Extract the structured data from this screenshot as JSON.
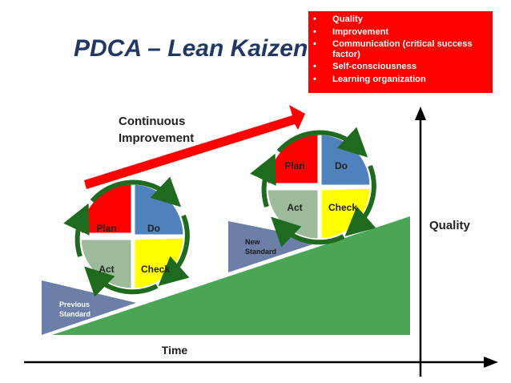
{
  "title": "PDCA – Lean Kaizen",
  "factors": [
    "Quality",
    "Improvement",
    "Communication (critical success factor)",
    "Self-consciousness",
    "Learning organization"
  ],
  "bullet": "•",
  "arrow_label": [
    "Continuous",
    "Improvement"
  ],
  "cycle1": {
    "plan": "Plan",
    "do": "Do",
    "act": "Act",
    "check": "Check"
  },
  "cycle2": {
    "plan": "Plan",
    "do": "Do",
    "act": "Act",
    "check": "Check"
  },
  "wedge1": [
    "Previous",
    "Standard"
  ],
  "wedge2": [
    "New",
    "Standard"
  ],
  "y_axis_label": "Quality",
  "x_axis_label": "Time",
  "colors": {
    "plan": "#ff0000",
    "do": "#4f81bd",
    "act": "#9bbb9b",
    "check": "#ffff00",
    "ring": "#1e6a1e",
    "slope": "#4aa654",
    "wedge": "#6b7fa8",
    "title": "#1f3864",
    "box": "#ff0000"
  }
}
